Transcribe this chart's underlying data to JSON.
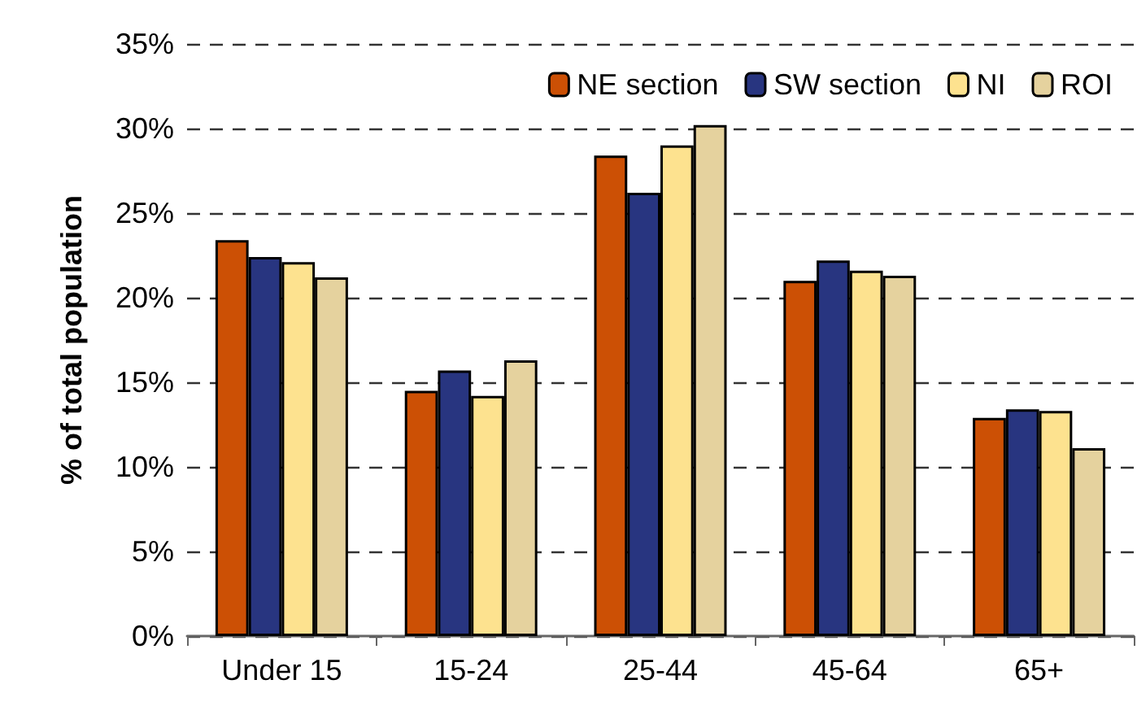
{
  "chart_data": {
    "type": "bar",
    "ylabel": "% of total population",
    "categories": [
      "Under 15",
      "15-24",
      "25-44",
      "45-64",
      "65+"
    ],
    "series": [
      {
        "name": "NE section",
        "color": "#cc5005",
        "values": [
          23.4,
          14.5,
          28.4,
          21.0,
          12.9
        ]
      },
      {
        "name": "SW section",
        "color": "#283580",
        "values": [
          22.4,
          15.7,
          26.2,
          22.2,
          13.4
        ]
      },
      {
        "name": "NI",
        "color": "#fde28f",
        "values": [
          22.1,
          14.2,
          29.0,
          21.6,
          13.3
        ]
      },
      {
        "name": "ROI",
        "color": "#e5d29e",
        "values": [
          21.2,
          16.3,
          30.2,
          21.3,
          11.1
        ]
      }
    ],
    "ylim": [
      0,
      35
    ],
    "yticks": [
      {
        "value": 0,
        "label": "0%"
      },
      {
        "value": 5,
        "label": "5%"
      },
      {
        "value": 10,
        "label": "10%"
      },
      {
        "value": 15,
        "label": "15%"
      },
      {
        "value": 20,
        "label": "20%"
      },
      {
        "value": 25,
        "label": "25%"
      },
      {
        "value": 30,
        "label": "30%"
      },
      {
        "value": 35,
        "label": "35%"
      }
    ],
    "grid": "y",
    "legend": "top right"
  }
}
